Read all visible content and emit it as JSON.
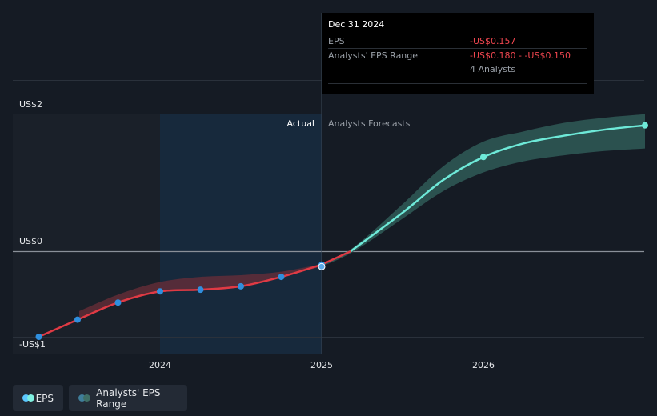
{
  "tooltip": {
    "date": "Dec 31 2024",
    "eps_label": "EPS",
    "eps_value": "-US$0.157",
    "range_label": "Analysts' EPS Range",
    "range_value": "-US$0.180 - -US$0.150",
    "analysts": "4 Analysts"
  },
  "legend": {
    "eps": "EPS",
    "range": "Analysts' EPS Range"
  },
  "colors": {
    "background": "#151b24",
    "actual_line": "#e03a44",
    "forecast_line": "#6ee9d8",
    "forecast_band": "#2f5b57",
    "actual_band": "#6b2e38",
    "point": "#2f8fde",
    "highlight": "#1a3550"
  },
  "chart_data": {
    "type": "line",
    "y_unit": "US$",
    "ylim": [
      -1.2,
      1.6
    ],
    "y_ticks": [
      {
        "value": 2,
        "label": "US$2"
      },
      {
        "value": 0,
        "label": "US$0"
      },
      {
        "value": -1,
        "label": "-US$1"
      }
    ],
    "x_ticks": [
      {
        "value": 2024,
        "label": "2024"
      },
      {
        "value": 2025,
        "label": "2025"
      },
      {
        "value": 2026,
        "label": "2026"
      }
    ],
    "section_labels": {
      "actual": "Actual",
      "forecast": "Analysts Forecasts"
    },
    "series": [
      {
        "name": "EPS",
        "x": [
          2023.25,
          2023.49,
          2023.74,
          2024.0,
          2024.25,
          2024.5,
          2024.75,
          2025.0
        ],
        "y": [
          -1.0,
          -0.8,
          -0.6,
          -0.47,
          -0.45,
          -0.41,
          -0.3,
          -0.157
        ]
      },
      {
        "name": "Forecast",
        "x": [
          2025.0,
          2025.18,
          2025.5,
          2025.75,
          2026.0,
          2026.25,
          2026.5,
          2026.75,
          2027.0
        ],
        "y": [
          -0.157,
          0.0,
          0.45,
          0.83,
          1.1,
          1.26,
          1.35,
          1.42,
          1.47
        ]
      }
    ],
    "points": [
      {
        "x": 2023.25,
        "y": -1.0
      },
      {
        "x": 2023.49,
        "y": -0.8
      },
      {
        "x": 2023.74,
        "y": -0.6
      },
      {
        "x": 2024.0,
        "y": -0.47
      },
      {
        "x": 2024.25,
        "y": -0.45
      },
      {
        "x": 2024.5,
        "y": -0.41
      },
      {
        "x": 2024.75,
        "y": -0.3
      },
      {
        "x": 2025.0,
        "y": -0.157
      },
      {
        "x": 2026.0,
        "y": 1.1
      },
      {
        "x": 2027.0,
        "y": 1.47
      }
    ],
    "actual_range": {
      "x": [
        2023.5,
        2023.75,
        2024.0,
        2024.25,
        2024.5,
        2024.75,
        2025.0
      ],
      "upper": [
        -0.7,
        -0.5,
        -0.36,
        -0.3,
        -0.28,
        -0.24,
        -0.15
      ],
      "lower": [
        -0.8,
        -0.6,
        -0.47,
        -0.45,
        -0.41,
        -0.3,
        -0.18
      ]
    },
    "forecast_range": {
      "x": [
        2025.0,
        2025.2,
        2025.5,
        2025.75,
        2026.0,
        2026.25,
        2026.5,
        2026.75,
        2027.0
      ],
      "upper": [
        -0.15,
        0.05,
        0.55,
        0.99,
        1.28,
        1.4,
        1.5,
        1.56,
        1.6
      ],
      "lower": [
        -0.18,
        0.0,
        0.38,
        0.7,
        0.92,
        1.05,
        1.12,
        1.17,
        1.2
      ]
    }
  }
}
